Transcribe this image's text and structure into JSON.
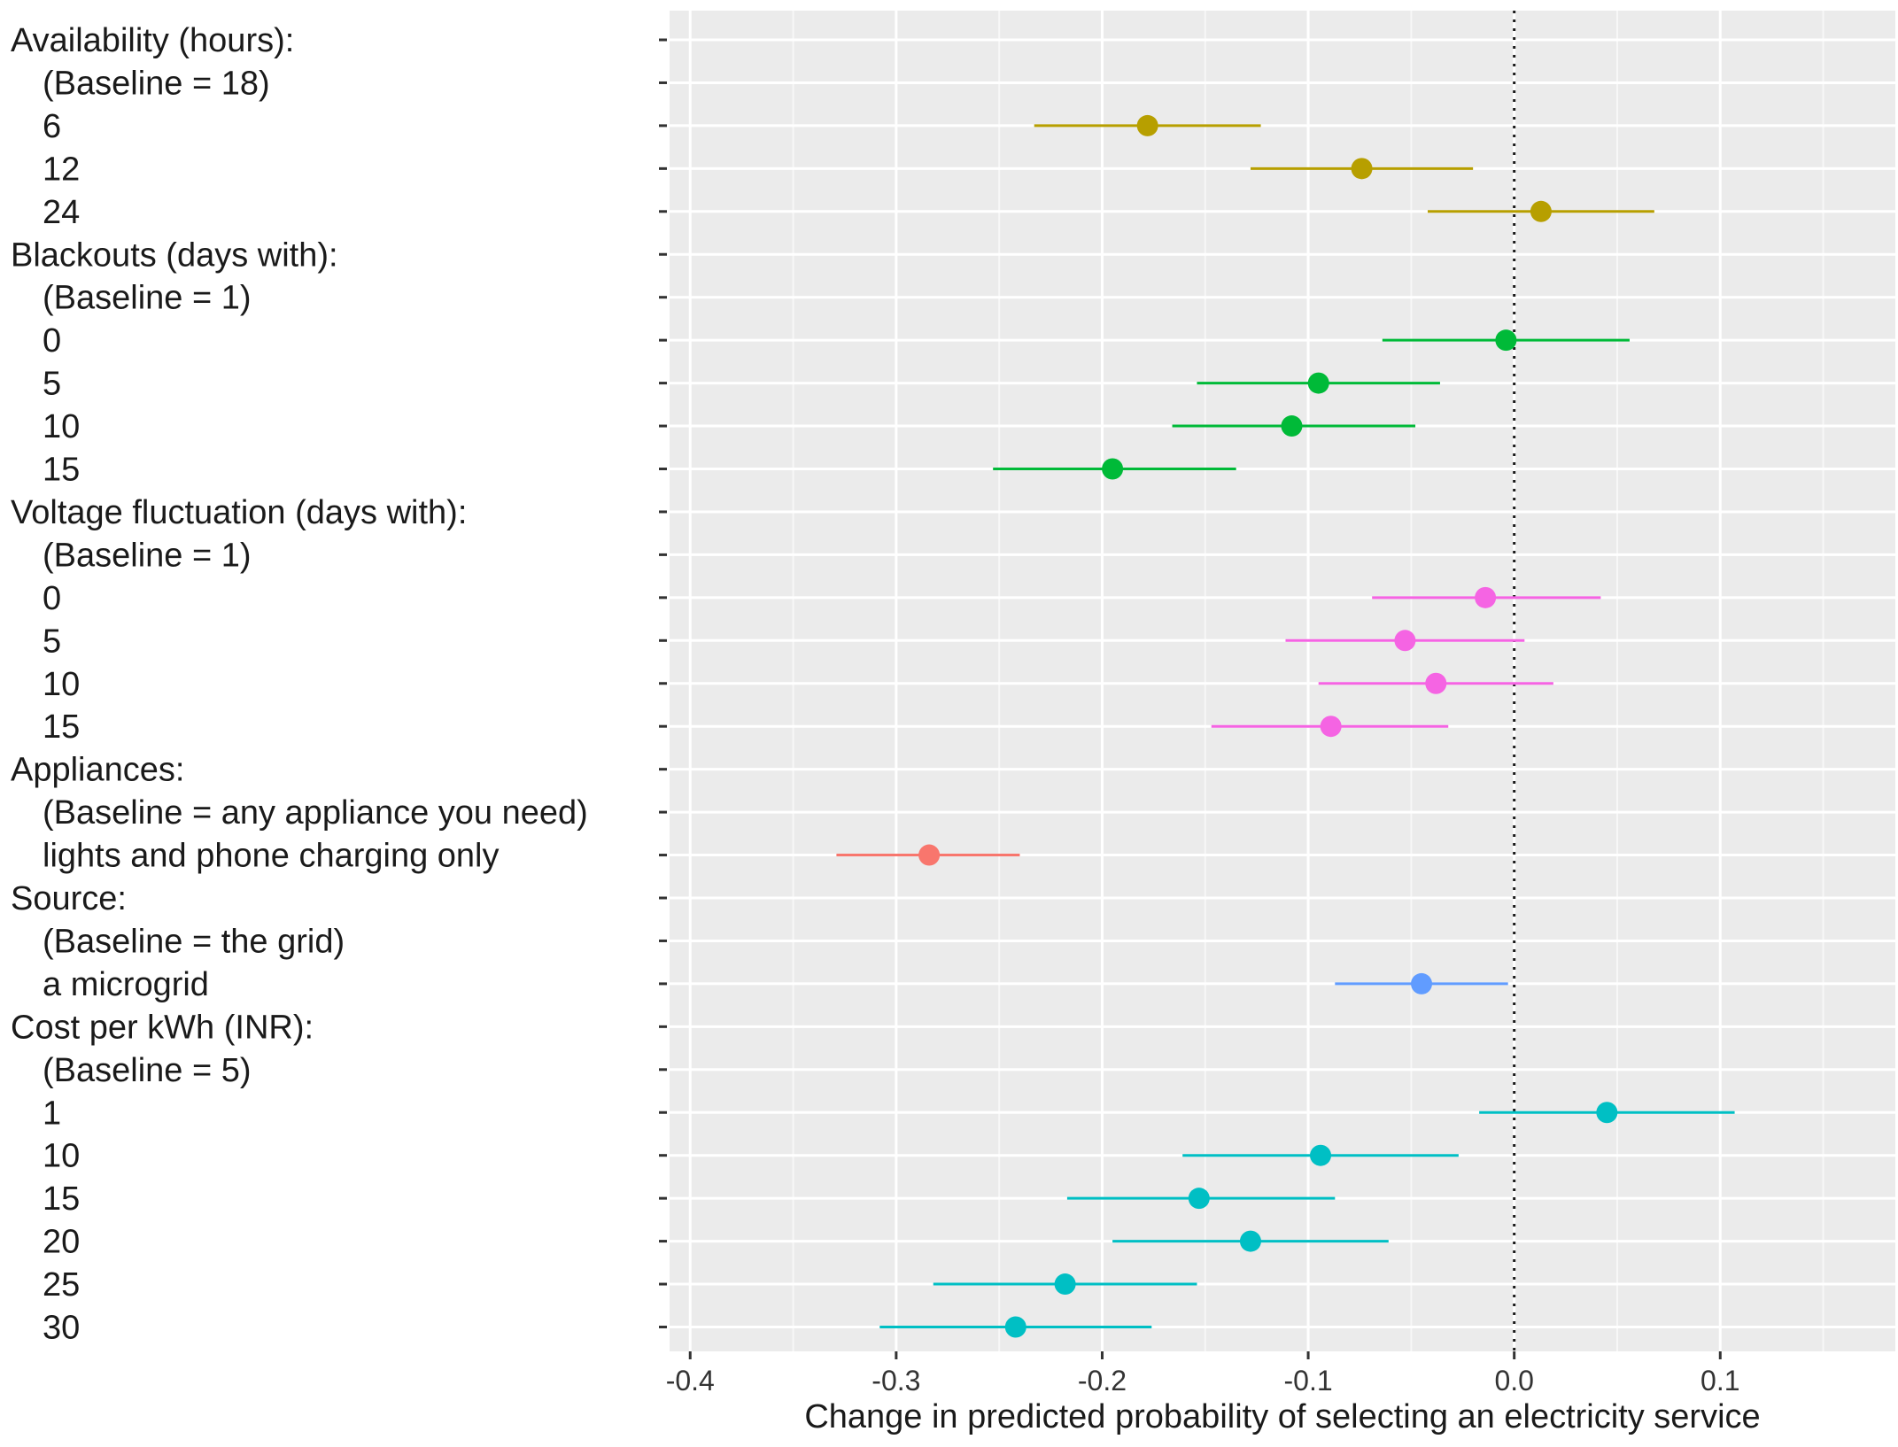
{
  "chart_data": {
    "type": "dot-and-whisker",
    "xlabel": "Change in predicted probability of selecting an electricity service",
    "xlim": [
      -0.41,
      0.185
    ],
    "xticks": [
      -0.4,
      -0.3,
      -0.2,
      -0.1,
      0.0,
      0.1
    ],
    "xtick_labels": [
      "-0.4",
      "-0.3",
      "-0.2",
      "-0.1",
      "0.0",
      "0.1"
    ],
    "reference_line": 0.0,
    "grid": true,
    "colors": {
      "availability": "#b79f00",
      "blackouts": "#00ba38",
      "voltage": "#f564e3",
      "appliances": "#f8766d",
      "source": "#619cff",
      "cost": "#00bfc4"
    },
    "rows": [
      {
        "label": "Availability (hours):",
        "indent": false
      },
      {
        "label": "(Baseline = 18)",
        "indent": true
      },
      {
        "label": "6",
        "indent": true,
        "group": "availability",
        "estimate": -0.178,
        "lower": -0.233,
        "upper": -0.123
      },
      {
        "label": "12",
        "indent": true,
        "group": "availability",
        "estimate": -0.074,
        "lower": -0.128,
        "upper": -0.02
      },
      {
        "label": "24",
        "indent": true,
        "group": "availability",
        "estimate": 0.013,
        "lower": -0.042,
        "upper": 0.068
      },
      {
        "label": "Blackouts (days with):",
        "indent": false
      },
      {
        "label": "(Baseline = 1)",
        "indent": true
      },
      {
        "label": "0",
        "indent": true,
        "group": "blackouts",
        "estimate": -0.004,
        "lower": -0.064,
        "upper": 0.056
      },
      {
        "label": "5",
        "indent": true,
        "group": "blackouts",
        "estimate": -0.095,
        "lower": -0.154,
        "upper": -0.036
      },
      {
        "label": "10",
        "indent": true,
        "group": "blackouts",
        "estimate": -0.108,
        "lower": -0.166,
        "upper": -0.048
      },
      {
        "label": "15",
        "indent": true,
        "group": "blackouts",
        "estimate": -0.195,
        "lower": -0.253,
        "upper": -0.135
      },
      {
        "label": "Voltage fluctuation (days with):",
        "indent": false
      },
      {
        "label": "(Baseline = 1)",
        "indent": true
      },
      {
        "label": "0",
        "indent": true,
        "group": "voltage",
        "estimate": -0.014,
        "lower": -0.069,
        "upper": 0.042
      },
      {
        "label": "5",
        "indent": true,
        "group": "voltage",
        "estimate": -0.053,
        "lower": -0.111,
        "upper": 0.005
      },
      {
        "label": "10",
        "indent": true,
        "group": "voltage",
        "estimate": -0.038,
        "lower": -0.095,
        "upper": 0.019
      },
      {
        "label": "15",
        "indent": true,
        "group": "voltage",
        "estimate": -0.089,
        "lower": -0.147,
        "upper": -0.032
      },
      {
        "label": "Appliances:",
        "indent": false
      },
      {
        "label": "(Baseline = any appliance you need)",
        "indent": true
      },
      {
        "label": "lights and phone charging only",
        "indent": true,
        "group": "appliances",
        "estimate": -0.284,
        "lower": -0.329,
        "upper": -0.24
      },
      {
        "label": "Source:",
        "indent": false
      },
      {
        "label": "(Baseline = the grid)",
        "indent": true
      },
      {
        "label": "a microgrid",
        "indent": true,
        "group": "source",
        "estimate": -0.045,
        "lower": -0.087,
        "upper": -0.003
      },
      {
        "label": "Cost per kWh (INR):",
        "indent": false
      },
      {
        "label": "(Baseline = 5)",
        "indent": true
      },
      {
        "label": "1",
        "indent": true,
        "group": "cost",
        "estimate": 0.045,
        "lower": -0.017,
        "upper": 0.107
      },
      {
        "label": "10",
        "indent": true,
        "group": "cost",
        "estimate": -0.094,
        "lower": -0.161,
        "upper": -0.027
      },
      {
        "label": "15",
        "indent": true,
        "group": "cost",
        "estimate": -0.153,
        "lower": -0.217,
        "upper": -0.087
      },
      {
        "label": "20",
        "indent": true,
        "group": "cost",
        "estimate": -0.128,
        "lower": -0.195,
        "upper": -0.061
      },
      {
        "label": "25",
        "indent": true,
        "group": "cost",
        "estimate": -0.218,
        "lower": -0.282,
        "upper": -0.154
      },
      {
        "label": "30",
        "indent": true,
        "group": "cost",
        "estimate": -0.242,
        "lower": -0.308,
        "upper": -0.176
      }
    ]
  }
}
